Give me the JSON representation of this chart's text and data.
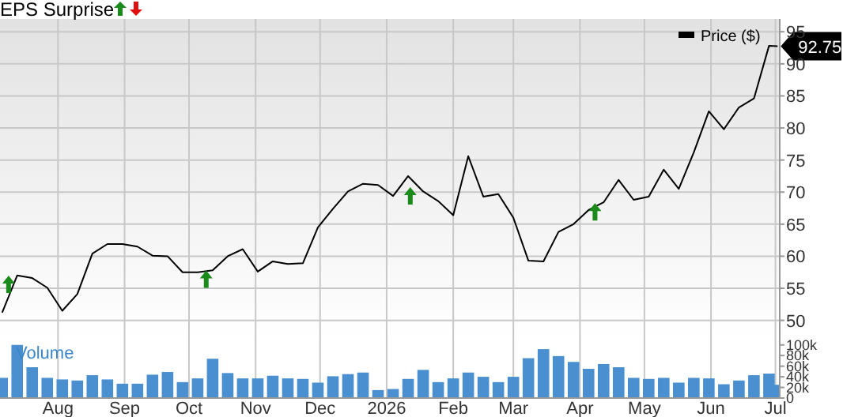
{
  "chart_data": [
    {
      "type": "line",
      "title": "EPS Surprise",
      "x": [
        "2025-07-06",
        "2025-07-13",
        "2025-07-20",
        "2025-07-27",
        "2025-08-03",
        "2025-08-10",
        "2025-08-17",
        "2025-08-24",
        "2025-08-31",
        "2025-09-07",
        "2025-09-14",
        "2025-09-21",
        "2025-09-28",
        "2025-10-05",
        "2025-10-12",
        "2025-10-19",
        "2025-10-26",
        "2025-11-02",
        "2025-11-09",
        "2025-11-16",
        "2025-11-23",
        "2025-11-30",
        "2025-12-07",
        "2025-12-14",
        "2025-12-21",
        "2025-12-28",
        "2026-01-04",
        "2026-01-11",
        "2026-01-18",
        "2026-01-25",
        "2026-02-01",
        "2026-02-08",
        "2026-02-15",
        "2026-02-22",
        "2026-03-01",
        "2026-03-08",
        "2026-03-15",
        "2026-03-22",
        "2026-03-29",
        "2026-04-05",
        "2026-04-12",
        "2026-04-19",
        "2026-04-26",
        "2026-05-03",
        "2026-05-10",
        "2026-05-17",
        "2026-05-24",
        "2026-05-31",
        "2026-06-07",
        "2026-06-14",
        "2026-06-21",
        "2026-06-28",
        "2026-07-02"
      ],
      "series": [
        {
          "name": "Price ($)",
          "color": "#000000",
          "values": [
            51.2,
            57.0,
            56.6,
            55.1,
            51.5,
            54.1,
            60.4,
            61.9,
            61.9,
            61.5,
            60.1,
            60.0,
            57.5,
            57.5,
            57.8,
            60.0,
            61.1,
            57.6,
            59.2,
            58.8,
            58.9,
            64.5,
            67.4,
            70.1,
            71.3,
            71.1,
            69.4,
            72.5,
            70.1,
            68.6,
            66.4,
            75.6,
            69.3,
            69.7,
            66.0,
            59.3,
            59.2,
            63.8,
            65.0,
            67.2,
            68.4,
            71.9,
            68.8,
            69.3,
            73.5,
            70.5,
            76.2,
            82.6,
            79.8,
            83.2,
            84.6,
            92.8,
            92.75
          ],
          "value_labels": [
            null,
            null,
            null,
            null,
            null,
            null,
            null,
            null,
            null,
            null,
            null,
            null,
            null,
            null,
            null,
            null,
            null,
            null,
            null,
            null,
            null,
            null,
            null,
            null,
            null,
            null,
            null,
            null,
            null,
            null,
            null,
            null,
            null,
            null,
            null,
            null,
            null,
            null,
            null,
            null,
            null,
            null,
            null,
            null,
            null,
            null,
            null,
            null,
            null,
            null,
            null,
            null,
            "92.75"
          ]
        },
        {
          "type": "scatter",
          "color": "#1a8a1a",
          "marker": "triangle",
          "x": [
            "2025-07-09",
            "2025-10-09",
            "2026-01-12",
            "2026-04-08"
          ],
          "values": [
            55.5,
            56.3,
            69.3,
            66.8
          ]
        }
      ],
      "xlim": [
        "2025-07-05",
        "2026-07-03"
      ],
      "ylim": [
        47,
        97
      ],
      "yticks": [
        50,
        55,
        60,
        65,
        70,
        75,
        80,
        85,
        90,
        95
      ],
      "grid": true,
      "legend": "top right",
      "tick_labels": "y"
    },
    {
      "type": "bar",
      "title": "Volume",
      "color": "#4a90d0",
      "x": [
        "2025-07-06",
        "2025-07-13",
        "2025-07-20",
        "2025-07-27",
        "2025-08-03",
        "2025-08-10",
        "2025-08-17",
        "2025-08-24",
        "2025-08-31",
        "2025-09-07",
        "2025-09-14",
        "2025-09-21",
        "2025-09-28",
        "2025-10-05",
        "2025-10-12",
        "2025-10-19",
        "2025-10-26",
        "2025-11-02",
        "2025-11-09",
        "2025-11-16",
        "2025-11-23",
        "2025-11-30",
        "2025-12-07",
        "2025-12-14",
        "2025-12-21",
        "2025-12-28",
        "2026-01-04",
        "2026-01-11",
        "2026-01-18",
        "2026-01-25",
        "2026-02-01",
        "2026-02-08",
        "2026-02-15",
        "2026-02-22",
        "2026-03-01",
        "2026-03-08",
        "2026-03-15",
        "2026-03-22",
        "2026-03-29",
        "2026-04-05",
        "2026-04-12",
        "2026-04-19",
        "2026-04-26",
        "2026-05-03",
        "2026-05-10",
        "2026-05-17",
        "2026-05-24",
        "2026-05-31",
        "2026-06-07",
        "2026-06-14",
        "2026-06-21",
        "2026-06-28",
        "2026-07-02"
      ],
      "values": [
        38000,
        100000,
        58000,
        38000,
        35000,
        33000,
        43000,
        35000,
        27000,
        27000,
        44000,
        49000,
        30000,
        37000,
        74000,
        47000,
        37000,
        37000,
        42000,
        37000,
        36000,
        29000,
        41000,
        45000,
        48000,
        15000,
        17000,
        36000,
        53000,
        30000,
        37000,
        48000,
        40000,
        30000,
        40000,
        75000,
        92000,
        79000,
        68000,
        55000,
        64000,
        58000,
        38000,
        36000,
        38000,
        29000,
        38000,
        37000,
        26000,
        33000,
        43000,
        46000,
        25000
      ],
      "xlim": [
        "2025-07-05",
        "2026-07-03"
      ],
      "xticks": [
        {
          "value": "2025-08-01",
          "label": "Aug"
        },
        {
          "value": "2025-09-01",
          "label": "Sep"
        },
        {
          "value": "2025-10-01",
          "label": "Oct"
        },
        {
          "value": "2025-11-01",
          "label": "Nov"
        },
        {
          "value": "2025-12-01",
          "label": "Dec"
        },
        {
          "value": "2026-01-01",
          "label": "2026"
        },
        {
          "value": "2026-02-01",
          "label": "Feb"
        },
        {
          "value": "2026-03-01",
          "label": "Mar"
        },
        {
          "value": "2026-04-01",
          "label": "Apr"
        },
        {
          "value": "2026-05-01",
          "label": "May"
        },
        {
          "value": "2026-06-01",
          "label": "Jun"
        },
        {
          "value": "2026-07-01",
          "label": "Jul"
        }
      ],
      "ylim": [
        0,
        110000
      ],
      "yticks": [
        0,
        {
          "value": 20000,
          "label": "20k"
        },
        {
          "value": 40000,
          "label": "40k"
        },
        {
          "value": 60000,
          "label": "60k"
        },
        {
          "value": 80000,
          "label": "80k"
        },
        {
          "value": 100000,
          "label": "100k"
        }
      ],
      "grid": "x"
    }
  ]
}
